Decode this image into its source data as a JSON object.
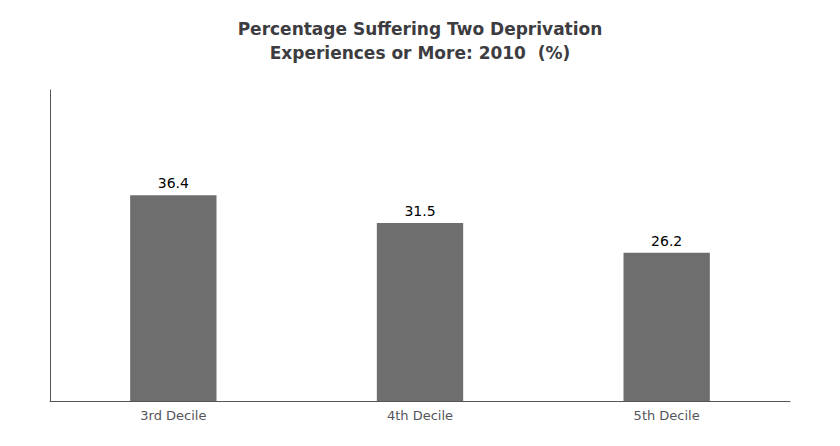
{
  "chart_data": {
    "type": "bar",
    "title": "Percentage Suffering Two Deprivation\nExperiences or More: 2010  (%)",
    "categories": [
      "3rd Decile",
      "4th Decile",
      "5th Decile"
    ],
    "values": [
      36.4,
      31.5,
      26.2
    ],
    "color": "#6e6e6e",
    "ylim": [
      0,
      55
    ],
    "grid": false,
    "data_labels": true,
    "tick_labels": "x"
  }
}
